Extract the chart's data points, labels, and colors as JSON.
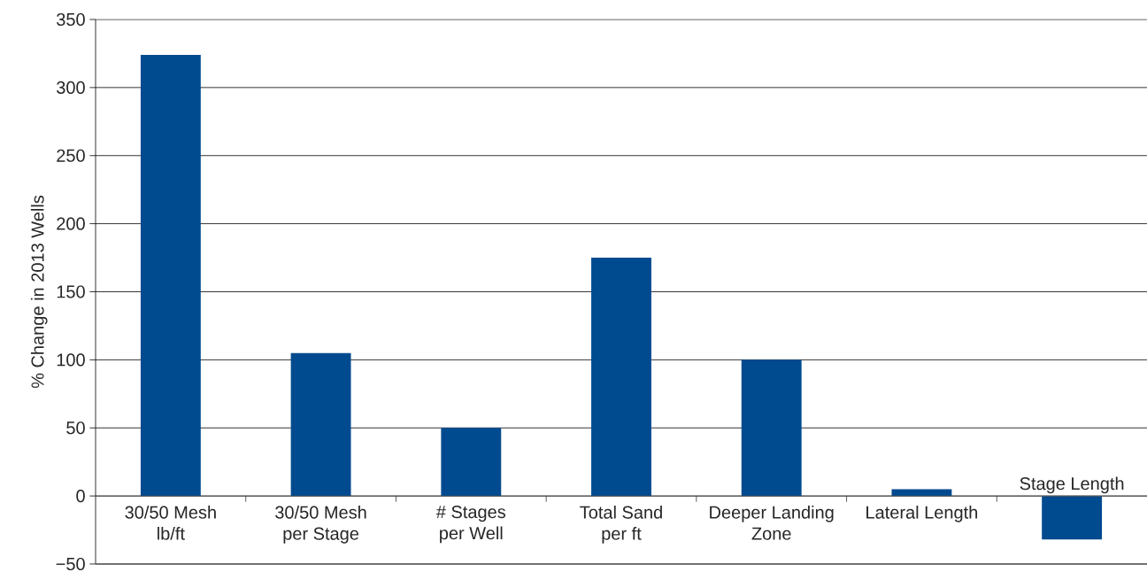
{
  "chart_data": {
    "type": "bar",
    "ylabel": "% Change in 2013 Wells",
    "categories": [
      "30/50 Mesh\nlb/ft",
      "30/50 Mesh\nper Stage",
      "# Stages\nper Well",
      "Total Sand\nper ft",
      "Deeper Landing\nZone",
      "Lateral Length",
      "Stage Length"
    ],
    "values": [
      324,
      105,
      50,
      175,
      100,
      5,
      -32
    ],
    "color": "#004a8f",
    "ylim": [
      -50,
      350
    ],
    "yticks": [
      {
        "value": -50,
        "label": "−50"
      },
      0,
      50,
      100,
      150,
      200,
      250,
      300,
      350
    ],
    "grid": "y"
  }
}
